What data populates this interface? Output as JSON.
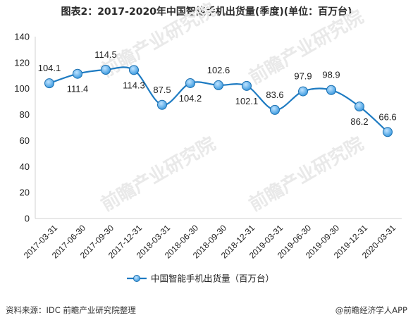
{
  "chart_data": {
    "type": "line",
    "title": "图表2：2017-2020年中国智能手机出货量(季度)(单位：百万台)",
    "categories": [
      "2017-03-31",
      "2017-06-30",
      "2017-09-30",
      "2017-12-31",
      "2018-03-31",
      "2018-06-30",
      "2018-09-30",
      "2018-12-31",
      "2019-03-31",
      "2019-06-30",
      "2019-09-30",
      "2019-12-31",
      "2020-03-31"
    ],
    "series": [
      {
        "name": "中国智能手机出货量（百万台）",
        "values": [
          104.1,
          111.4,
          114.5,
          114.3,
          87.5,
          104.2,
          102.6,
          102.1,
          83.6,
          97.9,
          98.9,
          86.2,
          66.6
        ]
      }
    ],
    "ylim": [
      0,
      140
    ],
    "yticks": [
      0,
      20,
      40,
      60,
      80,
      100,
      120,
      140
    ],
    "grid": false,
    "legend": "bottom",
    "color": "#1e7bc2",
    "marker_color": "#3d9be0"
  },
  "footer": {
    "source": "资料来源：IDC 前瞻产业研究院整理",
    "credit": "@前瞻经济学人APP"
  }
}
